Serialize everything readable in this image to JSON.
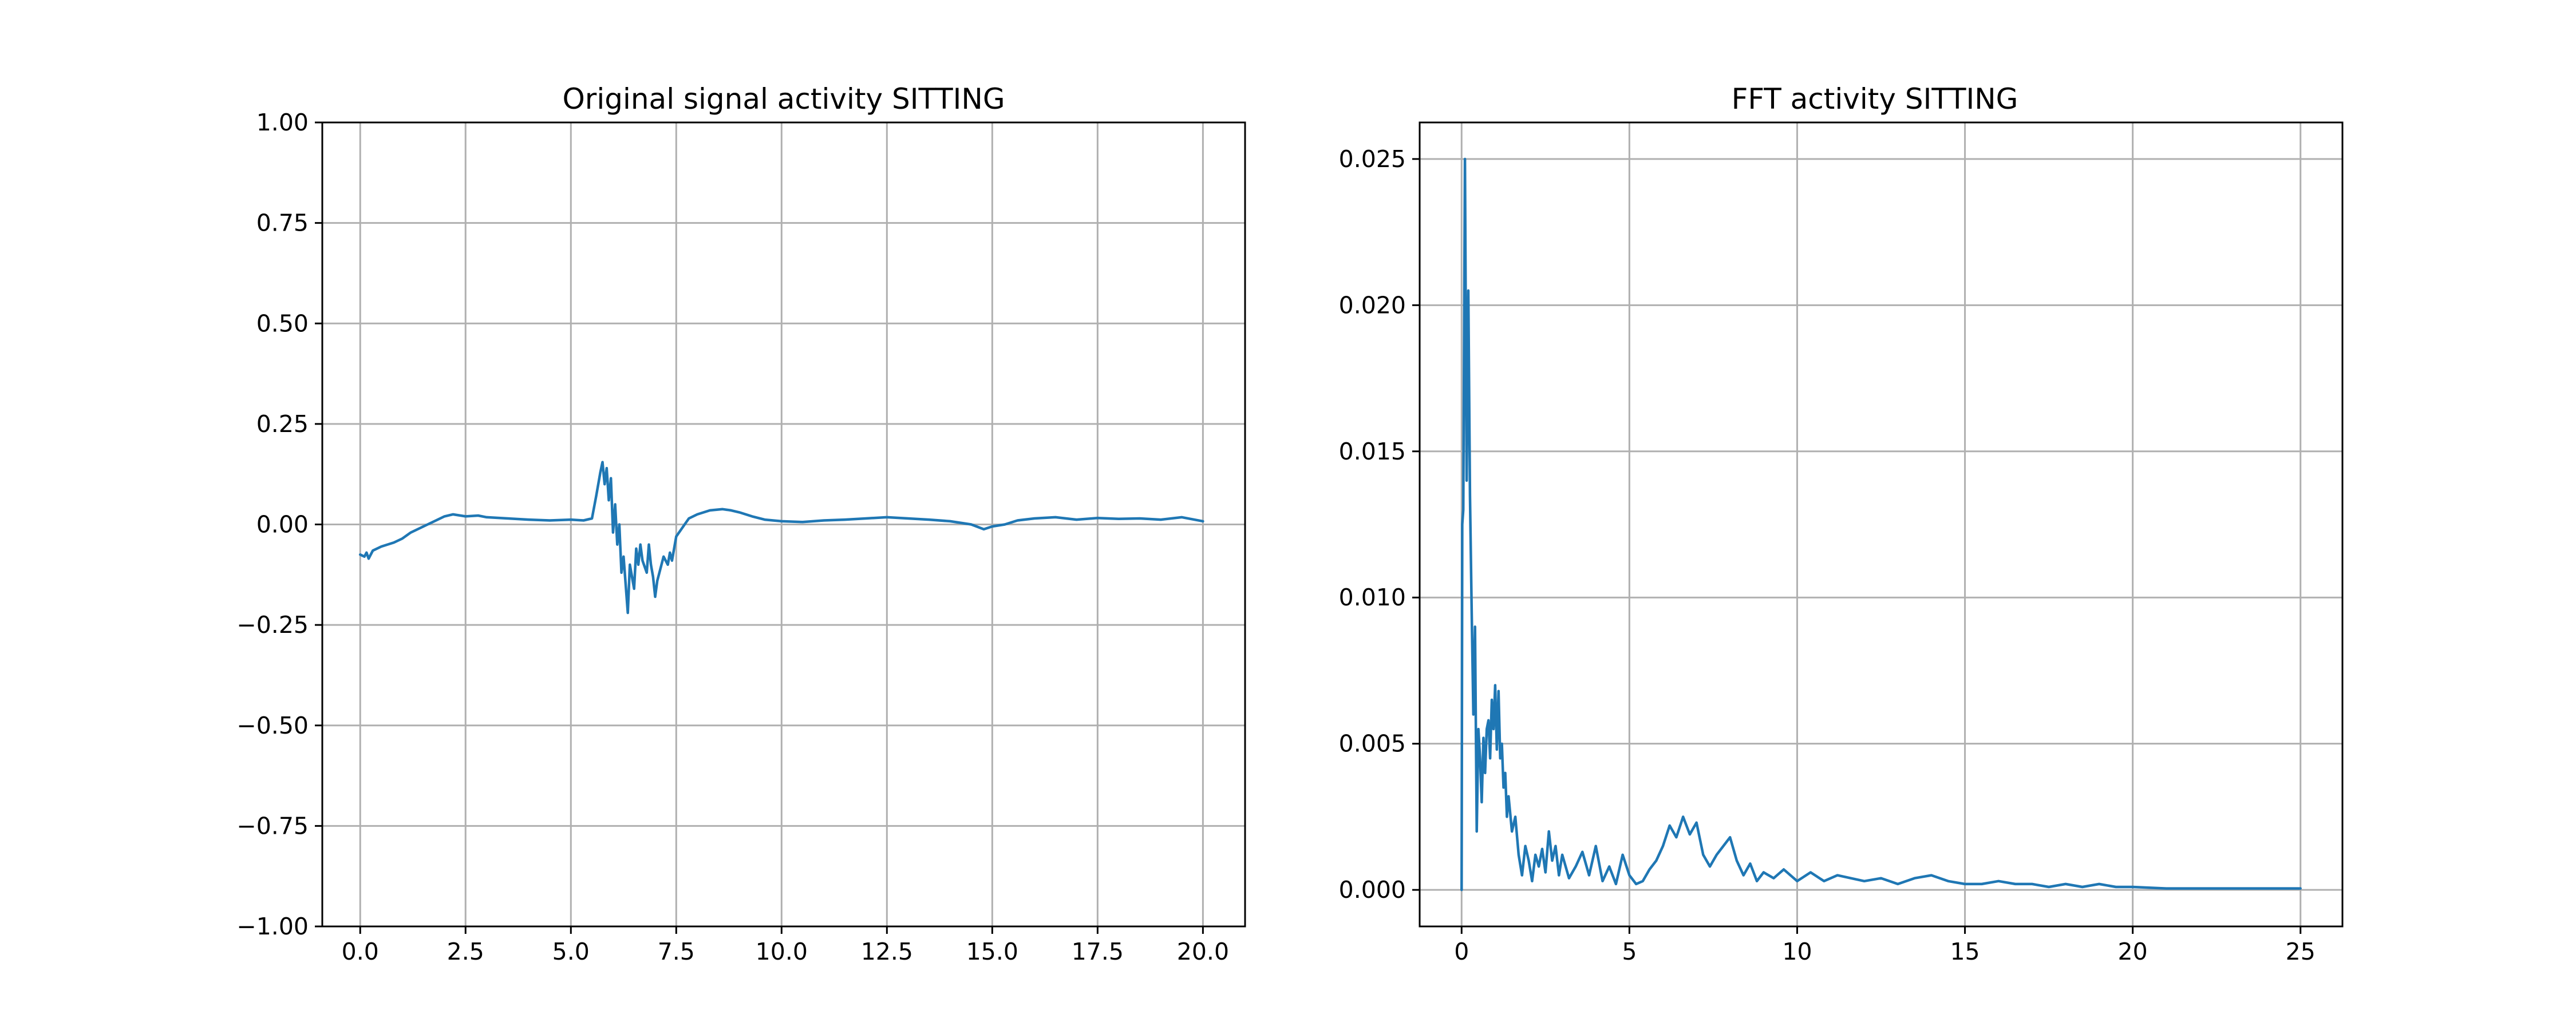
{
  "chart_data": [
    {
      "type": "line",
      "title": "Original signal activity SITTING",
      "xlabel": "",
      "ylabel": "",
      "xlim": [
        -0.9,
        21.0
      ],
      "ylim": [
        -1.0,
        1.0
      ],
      "xticks": [
        0.0,
        2.5,
        5.0,
        7.5,
        10.0,
        12.5,
        15.0,
        17.5,
        20.0
      ],
      "xtick_labels": [
        "0.0",
        "2.5",
        "5.0",
        "7.5",
        "10.0",
        "12.5",
        "15.0",
        "17.5",
        "20.0"
      ],
      "yticks": [
        -1.0,
        -0.75,
        -0.5,
        -0.25,
        0.0,
        0.25,
        0.5,
        0.75,
        1.0
      ],
      "ytick_labels": [
        "−1.00",
        "−0.75",
        "−0.50",
        "−0.25",
        "0.00",
        "0.25",
        "0.50",
        "0.75",
        "1.00"
      ],
      "grid": true,
      "color": "#1f77b4",
      "series": [
        {
          "x": [
            0.0,
            0.1,
            0.15,
            0.2,
            0.3,
            0.5,
            0.8,
            1.0,
            1.2,
            1.5,
            1.8,
            2.0,
            2.2,
            2.5,
            2.8,
            3.0,
            3.5,
            4.0,
            4.5,
            5.0,
            5.3,
            5.5,
            5.6,
            5.7,
            5.75,
            5.8,
            5.85,
            5.9,
            5.95,
            6.0,
            6.05,
            6.1,
            6.15,
            6.2,
            6.25,
            6.3,
            6.35,
            6.4,
            6.5,
            6.55,
            6.6,
            6.65,
            6.7,
            6.8,
            6.85,
            6.9,
            6.95,
            7.0,
            7.05,
            7.1,
            7.2,
            7.3,
            7.35,
            7.4,
            7.5,
            7.6,
            7.7,
            7.8,
            8.0,
            8.3,
            8.6,
            8.8,
            9.0,
            9.3,
            9.6,
            10.0,
            10.5,
            11.0,
            11.5,
            12.0,
            12.5,
            13.0,
            13.5,
            14.0,
            14.5,
            14.8,
            15.0,
            15.3,
            15.6,
            16.0,
            16.5,
            17.0,
            17.5,
            18.0,
            18.5,
            19.0,
            19.5,
            20.0
          ],
          "y": [
            -0.075,
            -0.08,
            -0.07,
            -0.085,
            -0.065,
            -0.055,
            -0.045,
            -0.035,
            -0.02,
            -0.005,
            0.01,
            0.02,
            0.025,
            0.02,
            0.022,
            0.018,
            0.015,
            0.012,
            0.01,
            0.012,
            0.01,
            0.015,
            0.07,
            0.13,
            0.155,
            0.1,
            0.14,
            0.06,
            0.115,
            -0.02,
            0.05,
            -0.05,
            0.0,
            -0.12,
            -0.08,
            -0.15,
            -0.22,
            -0.1,
            -0.16,
            -0.06,
            -0.1,
            -0.05,
            -0.09,
            -0.12,
            -0.05,
            -0.1,
            -0.13,
            -0.18,
            -0.14,
            -0.12,
            -0.08,
            -0.1,
            -0.07,
            -0.09,
            -0.03,
            -0.015,
            0.0,
            0.015,
            0.025,
            0.035,
            0.038,
            0.035,
            0.03,
            0.02,
            0.012,
            0.008,
            0.006,
            0.01,
            0.012,
            0.015,
            0.018,
            0.015,
            0.012,
            0.008,
            0.0,
            -0.012,
            -0.005,
            0.0,
            0.01,
            0.015,
            0.018,
            0.012,
            0.016,
            0.014,
            0.015,
            0.012,
            0.018,
            0.008
          ]
        }
      ]
    },
    {
      "type": "line",
      "title": "FFT activity SITTING",
      "xlabel": "",
      "ylabel": "",
      "xlim": [
        -1.25,
        26.25
      ],
      "ylim": [
        -0.00125,
        0.02625
      ],
      "xticks": [
        0,
        5,
        10,
        15,
        20,
        25
      ],
      "xtick_labels": [
        "0",
        "5",
        "10",
        "15",
        "20",
        "25"
      ],
      "yticks": [
        0.0,
        0.005,
        0.01,
        0.015,
        0.02,
        0.025
      ],
      "ytick_labels": [
        "0.000",
        "0.005",
        "0.010",
        "0.015",
        "0.020",
        "0.025"
      ],
      "grid": true,
      "color": "#1f77b4",
      "series": [
        {
          "x": [
            0.0,
            0.02,
            0.05,
            0.1,
            0.15,
            0.2,
            0.25,
            0.3,
            0.35,
            0.4,
            0.45,
            0.5,
            0.55,
            0.6,
            0.65,
            0.7,
            0.75,
            0.8,
            0.85,
            0.9,
            0.95,
            1.0,
            1.05,
            1.1,
            1.15,
            1.2,
            1.25,
            1.3,
            1.35,
            1.4,
            1.5,
            1.6,
            1.7,
            1.8,
            1.9,
            2.0,
            2.1,
            2.2,
            2.3,
            2.4,
            2.5,
            2.6,
            2.7,
            2.8,
            2.9,
            3.0,
            3.2,
            3.4,
            3.6,
            3.8,
            4.0,
            4.2,
            4.4,
            4.6,
            4.8,
            5.0,
            5.2,
            5.4,
            5.6,
            5.8,
            6.0,
            6.2,
            6.4,
            6.6,
            6.8,
            7.0,
            7.2,
            7.4,
            7.6,
            7.8,
            8.0,
            8.2,
            8.4,
            8.6,
            8.8,
            9.0,
            9.3,
            9.6,
            10.0,
            10.4,
            10.8,
            11.2,
            11.6,
            12.0,
            12.5,
            13.0,
            13.5,
            14.0,
            14.5,
            15.0,
            15.5,
            16.0,
            16.5,
            17.0,
            17.5,
            18.0,
            18.5,
            19.0,
            19.5,
            20.0,
            21.0,
            22.0,
            23.0,
            24.0,
            25.0
          ],
          "y": [
            0.0,
            0.0125,
            0.013,
            0.025,
            0.014,
            0.0205,
            0.0135,
            0.0095,
            0.006,
            0.009,
            0.002,
            0.0055,
            0.0045,
            0.003,
            0.0052,
            0.004,
            0.0055,
            0.0058,
            0.0045,
            0.0065,
            0.0055,
            0.007,
            0.0048,
            0.0068,
            0.0045,
            0.005,
            0.0035,
            0.004,
            0.0025,
            0.0032,
            0.002,
            0.0025,
            0.0012,
            0.0005,
            0.0015,
            0.001,
            0.0003,
            0.0012,
            0.0008,
            0.0014,
            0.0006,
            0.002,
            0.001,
            0.0015,
            0.0005,
            0.0012,
            0.0004,
            0.0008,
            0.0013,
            0.0005,
            0.0015,
            0.0003,
            0.0008,
            0.0002,
            0.0012,
            0.0005,
            0.0002,
            0.0003,
            0.0007,
            0.001,
            0.0015,
            0.0022,
            0.0018,
            0.0025,
            0.0019,
            0.0023,
            0.0012,
            0.0008,
            0.0012,
            0.0015,
            0.0018,
            0.001,
            0.0005,
            0.0009,
            0.0003,
            0.0006,
            0.0004,
            0.0007,
            0.0003,
            0.0006,
            0.0003,
            0.0005,
            0.0004,
            0.0003,
            0.0004,
            0.0002,
            0.0004,
            0.0005,
            0.0003,
            0.0002,
            0.0002,
            0.0003,
            0.0002,
            0.0002,
            0.0001,
            0.0002,
            0.0001,
            0.0002,
            0.0001,
            0.0001,
            5e-05,
            5e-05,
            5e-05,
            5e-05,
            5e-05
          ]
        }
      ]
    }
  ]
}
